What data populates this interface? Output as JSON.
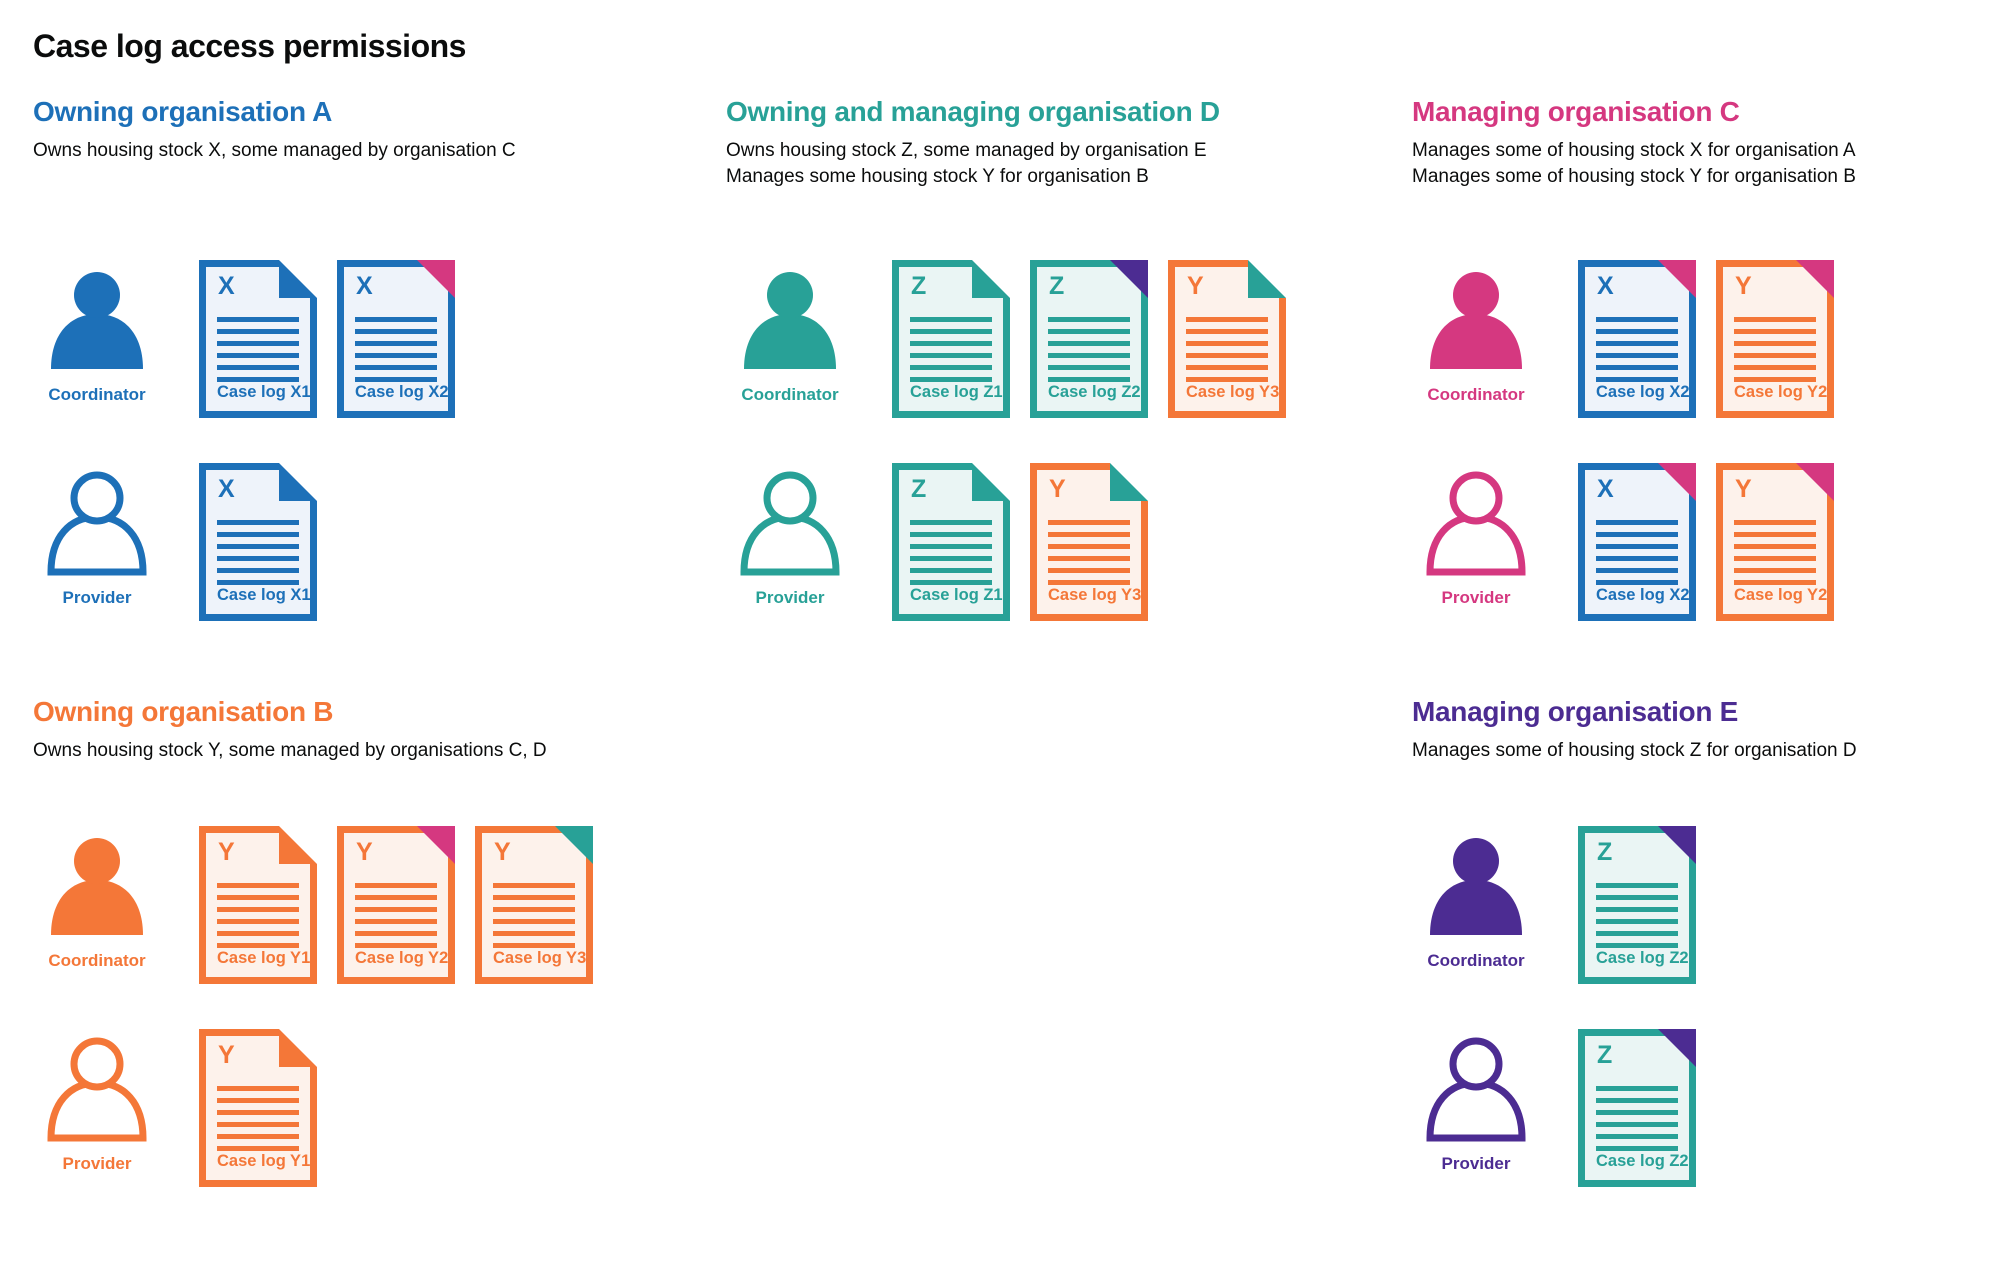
{
  "title": "Case log access permissions",
  "colors": {
    "blue": "#1d70b8",
    "teal": "#28a197",
    "pink": "#d53880",
    "orange": "#f47738",
    "purple": "#4c2c92",
    "text": "#0b0c0c"
  },
  "tints": {
    "blue": "#eef3fa",
    "teal": "#eaf5f4",
    "orange": "#fdf2eb"
  },
  "sections": [
    {
      "id": "a",
      "heading": "Owning organisation A",
      "color": "blue",
      "description": [
        "Owns housing stock X, some managed by organisation C"
      ],
      "rows": [
        {
          "role": "Coordinator",
          "person": "filled",
          "docs": [
            {
              "letter": "X",
              "label": "Case log X1",
              "doc_color": "blue",
              "fold_color": "blue",
              "fold_style": "flap"
            },
            {
              "letter": "X",
              "label": "Case log X2",
              "doc_color": "blue",
              "fold_color": "pink",
              "fold_style": "solid"
            }
          ]
        },
        {
          "role": "Provider",
          "person": "outline",
          "docs": [
            {
              "letter": "X",
              "label": "Case log X1",
              "doc_color": "blue",
              "fold_color": "blue",
              "fold_style": "flap"
            }
          ]
        }
      ]
    },
    {
      "id": "d",
      "heading": "Owning and managing organisation D",
      "color": "teal",
      "description": [
        "Owns housing stock Z, some managed by organisation E",
        "Manages some housing stock Y for organisation B"
      ],
      "rows": [
        {
          "role": "Coordinator",
          "person": "filled",
          "docs": [
            {
              "letter": "Z",
              "label": "Case log Z1",
              "doc_color": "teal",
              "fold_color": "teal",
              "fold_style": "flap"
            },
            {
              "letter": "Z",
              "label": "Case log Z2",
              "doc_color": "teal",
              "fold_color": "purple",
              "fold_style": "solid"
            },
            {
              "letter": "Y",
              "label": "Case log Y3",
              "doc_color": "orange",
              "fold_color": "teal",
              "fold_style": "flap"
            }
          ]
        },
        {
          "role": "Provider",
          "person": "outline",
          "docs": [
            {
              "letter": "Z",
              "label": "Case log Z1",
              "doc_color": "teal",
              "fold_color": "teal",
              "fold_style": "flap"
            },
            {
              "letter": "Y",
              "label": "Case log Y3",
              "doc_color": "orange",
              "fold_color": "teal",
              "fold_style": "flap"
            }
          ]
        }
      ]
    },
    {
      "id": "c",
      "heading": "Managing organisation C",
      "color": "pink",
      "description": [
        "Manages some of housing stock X for organisation A",
        "Manages some of housing stock Y for organisation B"
      ],
      "rows": [
        {
          "role": "Coordinator",
          "person": "filled",
          "docs": [
            {
              "letter": "X",
              "label": "Case log X2",
              "doc_color": "blue",
              "fold_color": "pink",
              "fold_style": "solid"
            },
            {
              "letter": "Y",
              "label": "Case log Y2",
              "doc_color": "orange",
              "fold_color": "pink",
              "fold_style": "solid"
            }
          ]
        },
        {
          "role": "Provider",
          "person": "outline",
          "docs": [
            {
              "letter": "X",
              "label": "Case log X2",
              "doc_color": "blue",
              "fold_color": "pink",
              "fold_style": "solid"
            },
            {
              "letter": "Y",
              "label": "Case log Y2",
              "doc_color": "orange",
              "fold_color": "pink",
              "fold_style": "solid"
            }
          ]
        }
      ]
    },
    {
      "id": "b",
      "heading": "Owning organisation B",
      "color": "orange",
      "description": [
        "Owns housing stock Y, some managed by organisations C, D"
      ],
      "rows": [
        {
          "role": "Coordinator",
          "person": "filled",
          "docs": [
            {
              "letter": "Y",
              "label": "Case log Y1",
              "doc_color": "orange",
              "fold_color": "orange",
              "fold_style": "flap"
            },
            {
              "letter": "Y",
              "label": "Case log Y2",
              "doc_color": "orange",
              "fold_color": "pink",
              "fold_style": "solid"
            },
            {
              "letter": "Y",
              "label": "Case log Y3",
              "doc_color": "orange",
              "fold_color": "teal",
              "fold_style": "solid"
            }
          ]
        },
        {
          "role": "Provider",
          "person": "outline",
          "docs": [
            {
              "letter": "Y",
              "label": "Case log Y1",
              "doc_color": "orange",
              "fold_color": "orange",
              "fold_style": "flap"
            }
          ]
        }
      ]
    },
    {
      "id": "e",
      "heading": "Managing organisation E",
      "color": "purple",
      "description": [
        "Manages some of housing stock Z for organisation D"
      ],
      "rows": [
        {
          "role": "Coordinator",
          "person": "filled",
          "docs": [
            {
              "letter": "Z",
              "label": "Case log Z2",
              "doc_color": "teal",
              "fold_color": "purple",
              "fold_style": "solid"
            }
          ]
        },
        {
          "role": "Provider",
          "person": "outline",
          "docs": [
            {
              "letter": "Z",
              "label": "Case log Z2",
              "doc_color": "teal",
              "fold_color": "purple",
              "fold_style": "solid"
            }
          ]
        }
      ]
    }
  ]
}
